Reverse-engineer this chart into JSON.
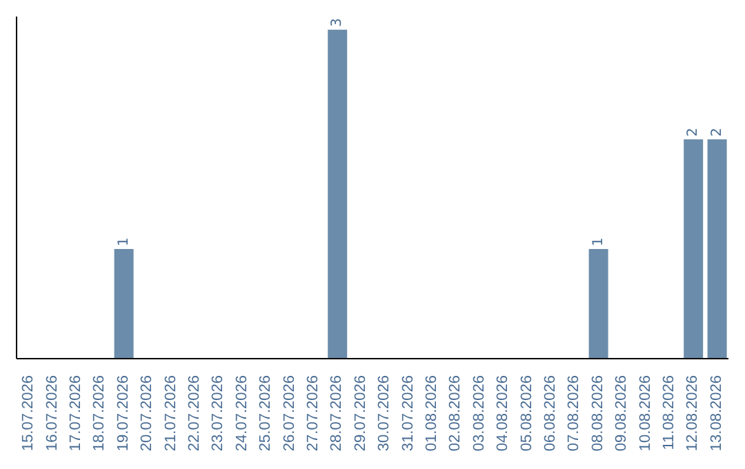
{
  "chart_data": {
    "type": "bar",
    "categories": [
      "15.07.2026",
      "16.07.2026",
      "17.07.2026",
      "18.07.2026",
      "19.07.2026",
      "20.07.2026",
      "21.07.2026",
      "22.07.2026",
      "23.07.2026",
      "24.07.2026",
      "25.07.2026",
      "26.07.2026",
      "27.07.2026",
      "28.07.2026",
      "29.07.2026",
      "30.07.2026",
      "31.07.2026",
      "01.08.2026",
      "02.08.2026",
      "03.08.2026",
      "04.08.2026",
      "05.08.2026",
      "06.08.2026",
      "07.08.2026",
      "08.08.2026",
      "09.08.2026",
      "10.08.2026",
      "11.08.2026",
      "12.08.2026",
      "13.08.2026"
    ],
    "values": [
      0,
      0,
      0,
      0,
      1,
      0,
      0,
      0,
      0,
      0,
      0,
      0,
      0,
      3,
      0,
      0,
      0,
      0,
      0,
      0,
      0,
      0,
      0,
      0,
      1,
      0,
      0,
      0,
      2,
      2
    ],
    "color": "#6b8caa",
    "value_labels": [
      null,
      null,
      null,
      null,
      "1",
      null,
      null,
      null,
      null,
      null,
      null,
      null,
      null,
      "3",
      null,
      null,
      null,
      null,
      null,
      null,
      null,
      null,
      null,
      null,
      "1",
      null,
      null,
      null,
      "2",
      "2"
    ],
    "tick_labels": "x",
    "grid": false,
    "legend": false
  }
}
